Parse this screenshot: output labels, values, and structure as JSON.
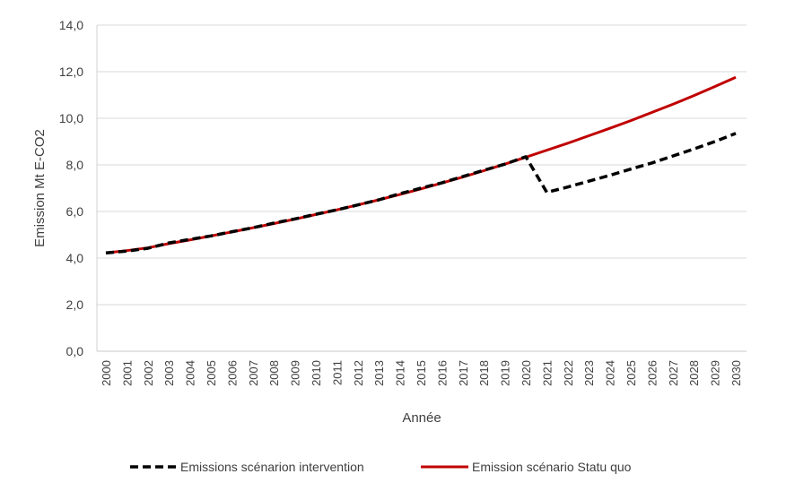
{
  "chart_data": {
    "type": "line",
    "title": "",
    "xlabel": "Année",
    "ylabel": "Emission Mt E-CO2",
    "ylim": [
      0,
      14
    ],
    "yticks": [
      "0,0",
      "2,0",
      "4,0",
      "6,0",
      "8,0",
      "10,0",
      "12,0",
      "14,0"
    ],
    "ytick_values": [
      0,
      2,
      4,
      6,
      8,
      10,
      12,
      14
    ],
    "grid": true,
    "legend_position": "bottom",
    "x": [
      "2000",
      "2001",
      "2002",
      "2003",
      "2004",
      "2005",
      "2006",
      "2007",
      "2008",
      "2009",
      "2010",
      "2011",
      "2012",
      "2013",
      "2014",
      "2015",
      "2016",
      "2017",
      "2018",
      "2019",
      "2020",
      "2021",
      "2022",
      "2023",
      "2024",
      "2025",
      "2026",
      "2027",
      "2028",
      "2029",
      "2030"
    ],
    "series": [
      {
        "name": "Emissions scénarion intervention",
        "color": "#000000",
        "style": "dashed",
        "values": [
          4.22,
          4.3,
          4.42,
          4.65,
          4.8,
          4.95,
          5.13,
          5.3,
          5.5,
          5.68,
          5.88,
          6.07,
          6.28,
          6.5,
          6.76,
          7.0,
          7.23,
          7.5,
          7.77,
          8.03,
          8.35,
          6.82,
          7.05,
          7.3,
          7.55,
          7.82,
          8.08,
          8.38,
          8.68,
          9.0,
          9.35
        ]
      },
      {
        "name": "Emission scénario Statu quo",
        "color": "#c00000",
        "style": "solid",
        "values": [
          4.22,
          4.32,
          4.44,
          4.62,
          4.78,
          4.95,
          5.12,
          5.3,
          5.48,
          5.67,
          5.87,
          6.07,
          6.28,
          6.5,
          6.73,
          6.97,
          7.22,
          7.48,
          7.75,
          8.03,
          8.33,
          8.63,
          8.93,
          9.25,
          9.57,
          9.9,
          10.25,
          10.6,
          10.97,
          11.36,
          11.76
        ]
      }
    ]
  }
}
